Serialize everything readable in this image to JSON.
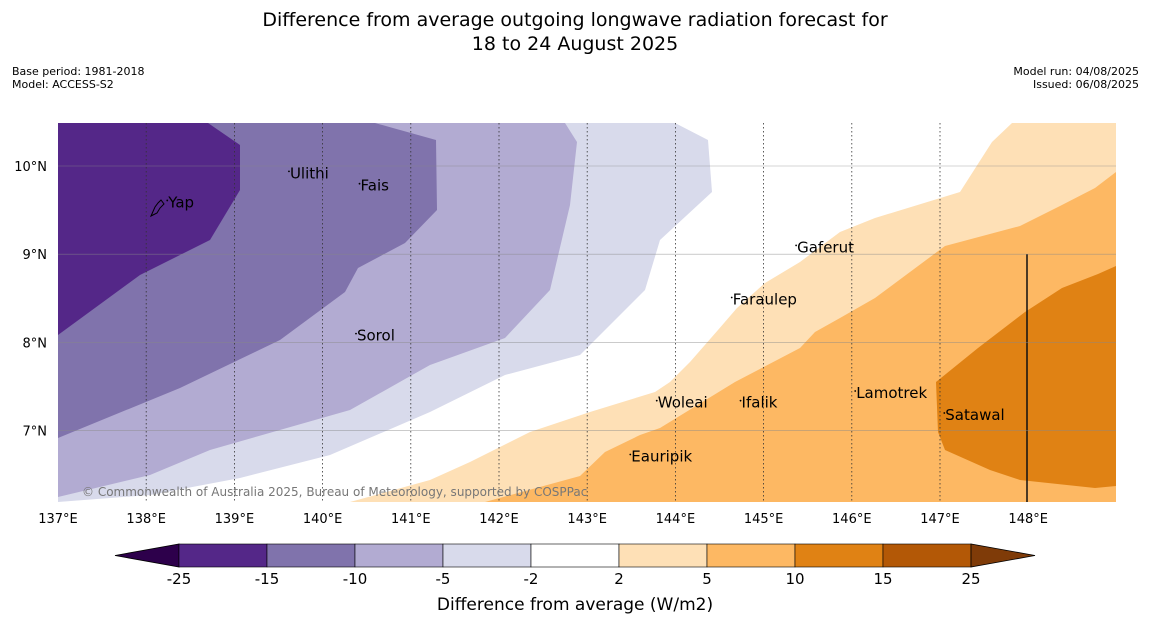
{
  "title": {
    "line1": "Difference from average outgoing longwave radiation forecast for",
    "line2": "18 to 24 August 2025"
  },
  "meta_left": {
    "base_period": "Base period: 1981-2018",
    "model": "Model: ACCESS-S2"
  },
  "meta_right": {
    "model_run": "Model run: 04/08/2025",
    "issued": "Issued: 06/08/2025"
  },
  "map": {
    "lon_labels": [
      "137°E",
      "138°E",
      "139°E",
      "140°E",
      "141°E",
      "142°E",
      "143°E",
      "144°E",
      "145°E",
      "146°E",
      "147°E",
      "148°E"
    ],
    "lat_labels": [
      "10°N",
      "9°N",
      "8°N",
      "7°N"
    ],
    "places": [
      {
        "name": "Yap",
        "lon": 138.25,
        "lat": 9.53
      },
      {
        "name": "Ulithi",
        "lon": 139.63,
        "lat": 9.86
      },
      {
        "name": "Fais",
        "lon": 140.43,
        "lat": 9.72
      },
      {
        "name": "Gaferut",
        "lon": 145.38,
        "lat": 9.02
      },
      {
        "name": "Faraulep",
        "lon": 144.65,
        "lat": 8.43
      },
      {
        "name": "Sorol",
        "lon": 140.39,
        "lat": 8.02
      },
      {
        "name": "Lamotrek",
        "lon": 146.05,
        "lat": 7.37
      },
      {
        "name": "Woleai",
        "lon": 143.8,
        "lat": 7.26
      },
      {
        "name": "Ifalik",
        "lon": 144.75,
        "lat": 7.26
      },
      {
        "name": "Satawal",
        "lon": 147.06,
        "lat": 7.12
      },
      {
        "name": "Eauripik",
        "lon": 143.5,
        "lat": 6.65
      }
    ],
    "copyright": "© Commonwealth of Australia 2025, Bureau of Meteorology, supported by COSPPac"
  },
  "colorbar": {
    "label": "Difference from average (W/m2)",
    "ticks": [
      "-25",
      "-15",
      "-10",
      "-5",
      "-2",
      "2",
      "5",
      "10",
      "15",
      "25"
    ],
    "colors": {
      "under": "#2d004b",
      "bins": [
        "#542788",
        "#8073ac",
        "#b2abd2",
        "#d8daeb",
        "#ffffff",
        "#fee0b6",
        "#fdb863",
        "#e08214",
        "#b35806"
      ],
      "over": "#7f3b08"
    }
  }
}
